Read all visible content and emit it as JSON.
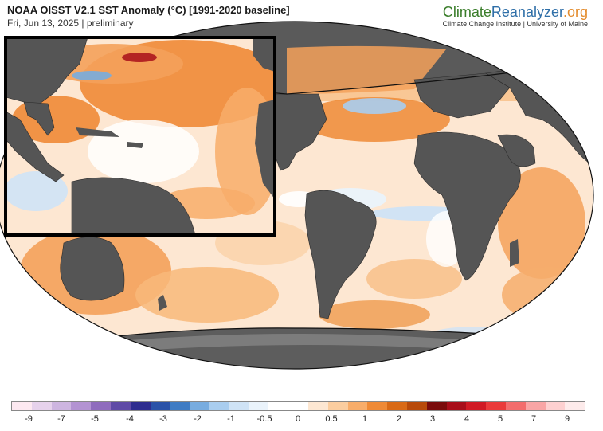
{
  "header": {
    "title": "NOAA OISST V2.1 SST Anomaly (°C) [1991-2020 baseline]",
    "subtitle": "Fri, Jun 13, 2025 | preliminary"
  },
  "brand": {
    "name_part_1": "Climate",
    "name_part_2": "Reanalyzer",
    "name_part_3": ".org",
    "tagline": "Climate Change Institute | University of Maine",
    "colors": {
      "climate": "#3a7d2a",
      "reanalyzer": "#2f6fa8",
      "org": "#e38b2c"
    }
  },
  "map": {
    "projection": "robinson-style ellipse",
    "land_color": "#555555",
    "ice_color": "#6a6a6a",
    "inset_region": "North Atlantic / Caribbean zoom",
    "inset_border_color": "#000000"
  },
  "colorbar": {
    "unit": "°C",
    "colors": [
      "#fde9f1",
      "#e6d2ec",
      "#cdb5e0",
      "#b393d2",
      "#8f6cbd",
      "#5f4aa6",
      "#2e2d8f",
      "#2a52a8",
      "#3f7cc4",
      "#78acdf",
      "#a9cdef",
      "#cfe3f6",
      "#eaf3fb",
      "#ffffff",
      "#ffffff",
      "#fde7d2",
      "#fbcd9f",
      "#f8ad6a",
      "#ef8a36",
      "#d96a16",
      "#b84a0a",
      "#7a0c0c",
      "#a80e1a",
      "#d01a24",
      "#ea3a3a",
      "#f36d6d",
      "#f9a5a5",
      "#fdd0d0",
      "#fdebeb"
    ],
    "tick_labels": [
      "-9",
      "-7",
      "-5",
      "-4",
      "-3",
      "-2",
      "-1",
      "-0.5",
      "0",
      "0.5",
      "1",
      "2",
      "3",
      "4",
      "5",
      "7",
      "9"
    ]
  }
}
